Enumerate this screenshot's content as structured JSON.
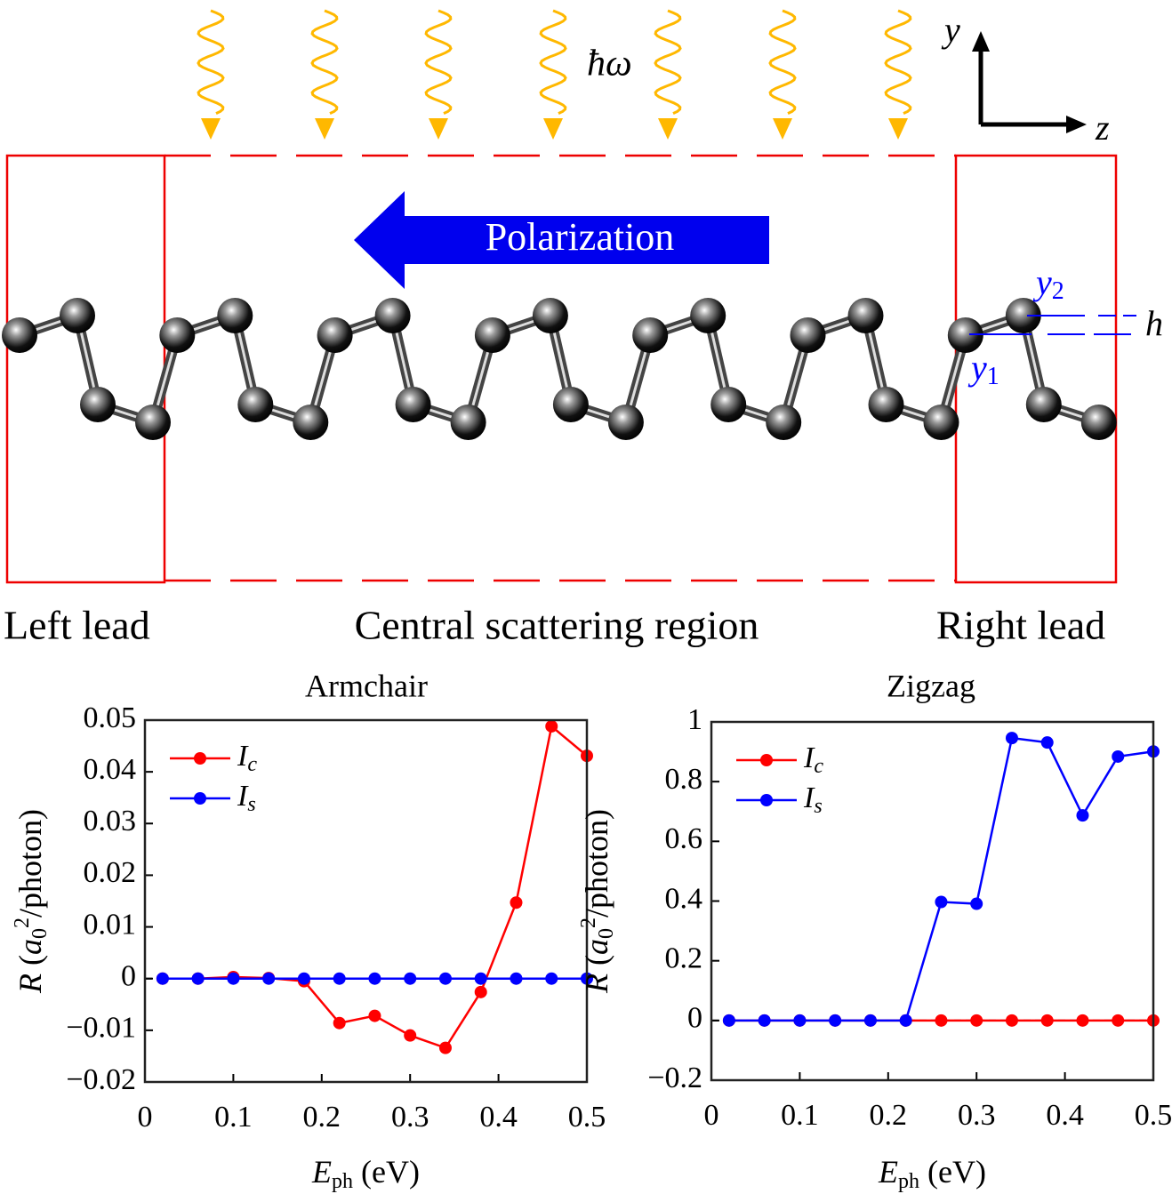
{
  "diagram": {
    "photon": "ħω",
    "axis_y": "y",
    "axis_z": "z",
    "arrow_label": "Polarization",
    "y2": {
      "main": "y",
      "sub": "2"
    },
    "y1": {
      "main": "y",
      "sub": "1"
    },
    "h": "h",
    "left_lead": "Left lead",
    "central": "Central scattering region",
    "right_lead": "Right lead"
  },
  "chart_data": [
    {
      "type": "line",
      "title": "Armchair",
      "xlabel": {
        "main": "E",
        "sub": "ph",
        "rest": " (eV)"
      },
      "ylabel": {
        "main": "R",
        "open": " (",
        "base": "a",
        "sub": "0",
        "sup": "2",
        "rest": "/photon)"
      },
      "x": [
        0.02,
        0.06,
        0.1,
        0.14,
        0.18,
        0.22,
        0.26,
        0.3,
        0.34,
        0.38,
        0.42,
        0.46,
        0.5
      ],
      "series": [
        {
          "name": {
            "main": "I",
            "sub": "c"
          },
          "color": "#ff0000",
          "values": [
            0,
            0,
            0.0003,
            0.0001,
            -0.0005,
            -0.0086,
            -0.0072,
            -0.011,
            -0.0134,
            -0.0026,
            0.0147,
            0.0488,
            0.0431
          ]
        },
        {
          "name": {
            "main": "I",
            "sub": "s"
          },
          "color": "#0000ff",
          "values": [
            0,
            0,
            0,
            0,
            0,
            0,
            0,
            0,
            0,
            0,
            0,
            0,
            0
          ]
        }
      ],
      "xlim": [
        0,
        0.5
      ],
      "xticks": [
        0,
        0.1,
        0.2,
        0.3,
        0.4,
        0.5
      ],
      "ylim": [
        -0.02,
        0.05
      ],
      "yticks": [
        {
          "value": -0.02,
          "label": "−0.02"
        },
        {
          "value": -0.01,
          "label": "−0.01"
        },
        0,
        0.01,
        0.02,
        0.03,
        0.04,
        0.05
      ],
      "reference_line": 0,
      "legend": "upper left"
    },
    {
      "type": "line",
      "title": "Zigzag",
      "xlabel": {
        "main": "E",
        "sub": "ph",
        "rest": " (eV)"
      },
      "ylabel": {
        "main": "R",
        "open": " (",
        "base": "a",
        "sub": "0",
        "sup": "2",
        "rest": "/photon)"
      },
      "x": [
        0.02,
        0.06,
        0.1,
        0.14,
        0.18,
        0.22,
        0.26,
        0.3,
        0.34,
        0.38,
        0.42,
        0.46,
        0.5
      ],
      "series": [
        {
          "name": {
            "main": "I",
            "sub": "c"
          },
          "color": "#ff0000",
          "values": [
            0,
            0,
            0,
            0,
            0,
            0,
            0,
            0,
            0,
            0,
            0,
            0,
            0
          ]
        },
        {
          "name": {
            "main": "I",
            "sub": "s"
          },
          "color": "#0000ff",
          "values": [
            0,
            0,
            0,
            0,
            0,
            0,
            0.397,
            0.391,
            0.946,
            0.931,
            0.687,
            0.884,
            0.901
          ]
        }
      ],
      "xlim": [
        0,
        0.5
      ],
      "xticks": [
        0,
        0.1,
        0.2,
        0.3,
        0.4,
        0.5
      ],
      "ylim": [
        -0.2,
        1
      ],
      "yticks": [
        {
          "value": -0.2,
          "label": "−0.2"
        },
        0,
        0.2,
        0.4,
        0.6,
        0.8,
        1
      ],
      "reference_line": 0,
      "legend": "upper left"
    }
  ]
}
